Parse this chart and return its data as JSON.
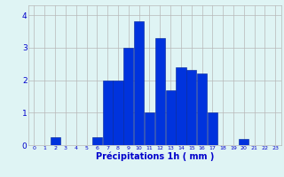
{
  "categories": [
    0,
    1,
    2,
    3,
    4,
    5,
    6,
    7,
    8,
    9,
    10,
    11,
    12,
    13,
    14,
    15,
    16,
    17,
    18,
    19,
    20,
    21,
    22,
    23
  ],
  "values": [
    0,
    0,
    0.25,
    0,
    0,
    0,
    0.25,
    2.0,
    2.0,
    3.0,
    3.8,
    1.0,
    3.3,
    1.7,
    2.4,
    2.3,
    2.2,
    1.0,
    0,
    0,
    0.2,
    0,
    0,
    0
  ],
  "bar_color": "#0033dd",
  "bar_edge_color": "#002299",
  "background_color": "#dff4f4",
  "grid_color": "#b8b8b8",
  "xlabel": "Précipitations 1h ( mm )",
  "ylim": [
    0,
    4.3
  ],
  "yticks": [
    0,
    1,
    2,
    3,
    4
  ],
  "xlabel_color": "#0000cc",
  "tick_color": "#0000cc",
  "xtick_fontsize": 4.5,
  "ytick_fontsize": 6.5,
  "xlabel_fontsize": 7.0
}
